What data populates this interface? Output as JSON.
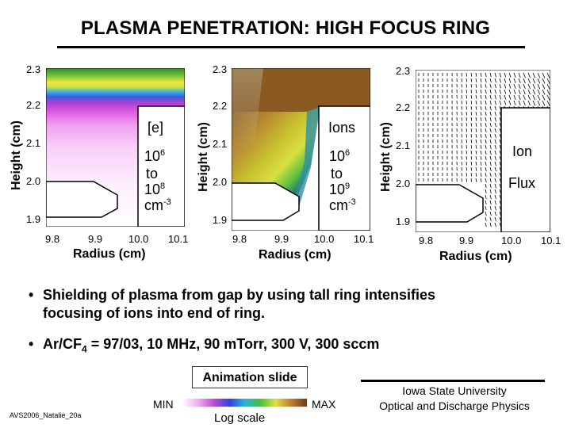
{
  "slide": {
    "title": "PLASMA PENETRATION: HIGH FOCUS RING",
    "bullets": [
      {
        "line1": "Shielding of plasma from gap by using tall ring intensifies",
        "line2": "focusing of ions into end of ring."
      },
      {
        "text_a": "Ar/CF",
        "sub": "4",
        "text_b": " = 97/03, 10 MHz, 90 mTorr, 300 V, 300 sccm"
      }
    ],
    "bullet_symbol": "•",
    "animation_label": "Animation slide",
    "colorbar": {
      "min": "MIN",
      "max": "MAX",
      "scale": "Log scale"
    },
    "affiliation": {
      "line1": "Iowa State University",
      "line2": "Optical and Discharge Physics"
    },
    "file_id": "AVS2006_Natalie_20a"
  },
  "panels": [
    {
      "ylabel": "Height (cm)",
      "xlabel": "Radius (cm)",
      "yticks": [
        "2.3",
        "2.2",
        "2.1",
        "2.0",
        "1.9"
      ],
      "xticks": [
        "9.8",
        "9.9",
        "10.0",
        "10.1"
      ],
      "species": "[e]",
      "range_lo": "10",
      "range_lo_exp": "6",
      "to": "to",
      "range_hi": "10",
      "range_hi_exp": "8",
      "unit": "cm",
      "unit_exp": "-3"
    },
    {
      "ylabel": "Height (cm)",
      "xlabel": "Radius (cm)",
      "yticks": [
        "2.3",
        "2.2",
        "2.1",
        "2.0",
        "1.9"
      ],
      "xticks": [
        "9.8",
        "9.9",
        "10.0",
        "10.1"
      ],
      "species": "Ions",
      "range_lo": "10",
      "range_lo_exp": "6",
      "to": "to",
      "range_hi": "10",
      "range_hi_exp": "9",
      "unit": "cm",
      "unit_exp": "-3"
    },
    {
      "ylabel": "Height (cm)",
      "xlabel": "Radius (cm)",
      "yticks": [
        "2.3",
        "2.2",
        "2.1",
        "2.0",
        "1.9"
      ],
      "xticks": [
        "9.8",
        "9.9",
        "10.0",
        "10.1"
      ],
      "label1": "Ion",
      "label2": "Flux"
    }
  ]
}
